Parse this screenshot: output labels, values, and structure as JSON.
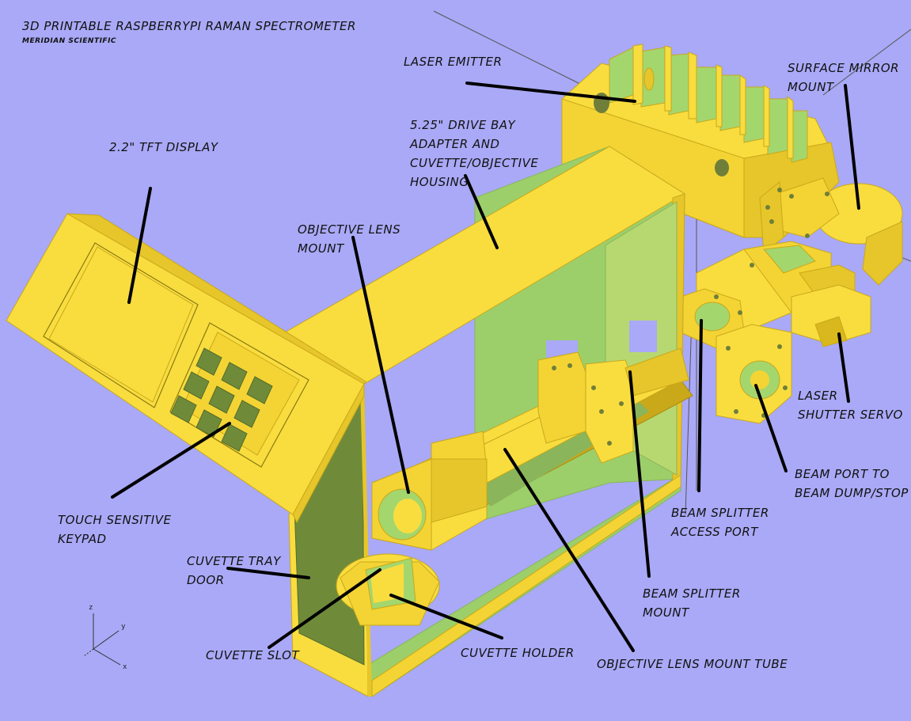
{
  "title": "3D PRINTABLE RASPBERRYPI RAMAN SPECTROMETER",
  "subtitle": "MERIDIAN SCIENTIFIC",
  "labels": {
    "laser_emitter": [
      "LASER EMITTER"
    ],
    "surface_mirror_mount": [
      "SURFACE MIRROR",
      "MOUNT"
    ],
    "drive_bay": [
      "5.25\" DRIVE BAY",
      "ADAPTER AND",
      "CUVETTE/OBJECTIVE",
      "HOUSING"
    ],
    "tft_display": [
      "2.2\" TFT DISPLAY"
    ],
    "objective_lens_mount": [
      "OBJECTIVE LENS",
      "MOUNT"
    ],
    "laser_shutter_servo": [
      "LASER",
      "SHUTTER SERVO"
    ],
    "beam_port": [
      "BEAM PORT TO",
      "BEAM DUMP/STOP"
    ],
    "beam_splitter_access": [
      "BEAM SPLITTER",
      "ACCESS PORT"
    ],
    "touch_keypad": [
      "TOUCH SENSITIVE",
      "KEYPAD"
    ],
    "cuvette_tray_door": [
      "CUVETTE TRAY",
      "DOOR"
    ],
    "beam_splitter_mount": [
      "BEAM SPLITTER",
      "MOUNT"
    ],
    "cuvette_slot": [
      "CUVETTE SLOT"
    ],
    "cuvette_holder": [
      "CUVETTE HOLDER"
    ],
    "objective_tube": [
      "OBJECTIVE LENS MOUNT TUBE"
    ]
  },
  "axes": {
    "z": "z",
    "y": "y",
    "x": "x"
  },
  "colors": {
    "background": "#a9a9f7",
    "part": "#f9dd3f",
    "part_shade": "#d8b81c",
    "inner": "#9ccf6a",
    "leader": "#000000"
  }
}
